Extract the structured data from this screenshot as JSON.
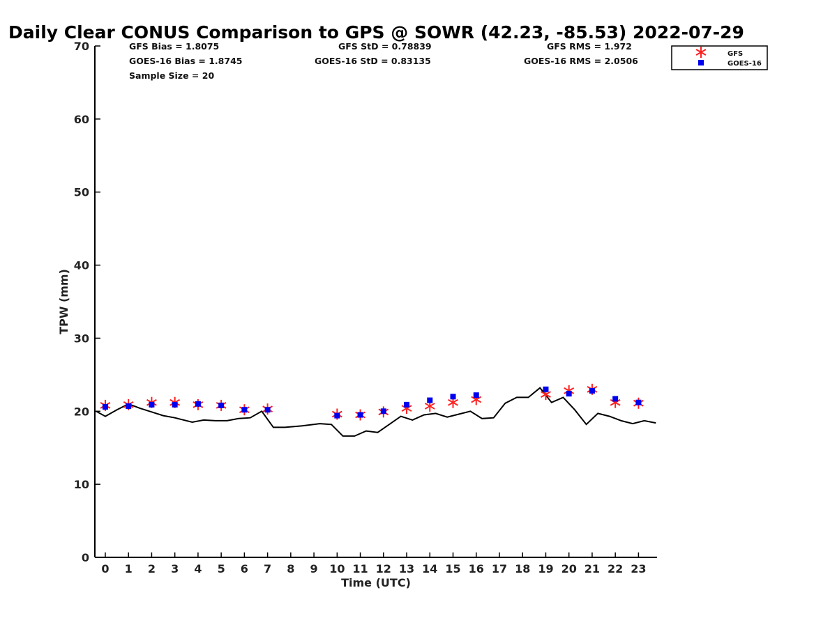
{
  "chart_data": {
    "type": "scatter",
    "title": "Daily Clear CONUS Comparison to GPS @ SOWR (42.23, -85.53) 2022-07-29",
    "xlabel": "Time (UTC)",
    "ylabel": "TPW (mm)",
    "xlim": [
      -0.45,
      23.8
    ],
    "ylim": [
      0,
      70
    ],
    "xticks": [
      0,
      1,
      2,
      3,
      4,
      5,
      6,
      7,
      8,
      9,
      10,
      11,
      12,
      13,
      14,
      15,
      16,
      17,
      18,
      19,
      20,
      21,
      22,
      23
    ],
    "yticks": [
      0,
      10,
      20,
      30,
      40,
      50,
      60,
      70
    ],
    "stats": {
      "gfs_bias": "GFS Bias = 1.8075",
      "goes_bias": "GOES-16 Bias = 1.8745",
      "gfs_std": "GFS StD = 0.78839",
      "goes_std": "GOES-16 StD = 0.83135",
      "gfs_rms": "GFS RMS = 1.972",
      "goes_rms": "GOES-16 RMS = 2.0506",
      "sample_size": "Sample Size = 20"
    },
    "legend": {
      "position": "top-right",
      "entries": [
        "GFS",
        "GOES-16"
      ]
    },
    "series": [
      {
        "name": "GPS",
        "type": "line",
        "color": "#000000",
        "x": [
          -0.4,
          0,
          0.5,
          1,
          1.5,
          2,
          2.5,
          3,
          3.25,
          3.75,
          4.25,
          4.75,
          5.25,
          5.75,
          6.25,
          6.75,
          7.25,
          7.75,
          8.5,
          9.25,
          9.75,
          10.25,
          10.75,
          11.25,
          11.75,
          12.25,
          12.75,
          13.25,
          13.75,
          14.25,
          14.75,
          15.25,
          15.75,
          16.25,
          16.75,
          17.25,
          17.75,
          18.25,
          18.75,
          19.25,
          19.75,
          20.25,
          20.75,
          21.25,
          21.75,
          22.25,
          22.75,
          23.25,
          23.75
        ],
        "y": [
          20.0,
          19.3,
          20.2,
          21.0,
          20.4,
          19.9,
          19.4,
          19.1,
          18.9,
          18.5,
          18.8,
          18.7,
          18.7,
          19.0,
          19.1,
          20.0,
          17.8,
          17.8,
          18.0,
          18.3,
          18.2,
          16.6,
          16.6,
          17.3,
          17.1,
          18.2,
          19.3,
          18.8,
          19.5,
          19.7,
          19.2,
          19.6,
          20.0,
          19.0,
          19.1,
          21.1,
          21.9,
          21.9,
          23.2,
          21.2,
          21.9,
          20.2,
          18.2,
          19.7,
          19.3,
          18.7,
          18.3,
          18.7,
          18.4
        ]
      },
      {
        "name": "GFS",
        "type": "scatter",
        "marker": "asterisk",
        "color": "#ff2020",
        "x": [
          0,
          1,
          2,
          3,
          4,
          5,
          6,
          7,
          10,
          11,
          12,
          13,
          14,
          15,
          16,
          19,
          20,
          21,
          22,
          23
        ],
        "y": [
          20.8,
          20.9,
          21.2,
          21.2,
          20.9,
          20.8,
          20.2,
          20.3,
          19.6,
          19.5,
          19.9,
          20.4,
          20.7,
          21.2,
          21.6,
          22.3,
          22.8,
          23.0,
          21.2,
          21.1
        ]
      },
      {
        "name": "GOES-16",
        "type": "scatter",
        "marker": "square",
        "color": "#0000ee",
        "x": [
          0,
          1,
          2,
          3,
          4,
          5,
          6,
          7,
          10,
          11,
          12,
          13,
          14,
          15,
          16,
          19,
          20,
          21,
          22,
          23
        ],
        "y": [
          20.6,
          20.7,
          20.9,
          20.9,
          21.0,
          20.8,
          20.2,
          20.2,
          19.4,
          19.5,
          20.0,
          20.9,
          21.5,
          22.0,
          22.2,
          23.0,
          22.4,
          22.8,
          21.7,
          21.2
        ]
      }
    ]
  }
}
